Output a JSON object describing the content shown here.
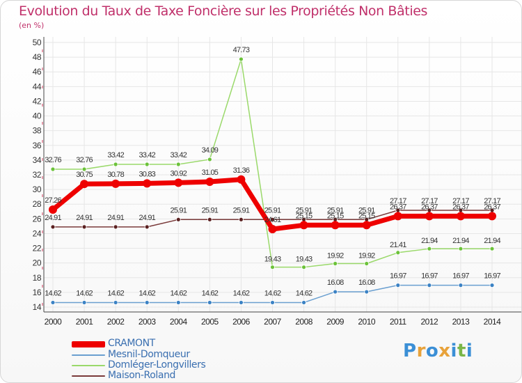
{
  "title": "Evolution du Taux de Taxe Foncière sur les Propriétés Non Bâties",
  "unit_label": "(en %)",
  "logo": {
    "text": [
      "P",
      "r",
      "o",
      "x",
      "i",
      "t",
      "i"
    ],
    "colors": [
      "#3b8fd6",
      "#e8a23a",
      "#3b8fd6",
      "#e8a23a",
      "#3b8fd6",
      "#7ab648",
      "#3b8fd6"
    ]
  },
  "chart_data": {
    "type": "line",
    "title": "Evolution du Taux de Taxe Foncière sur les Propriétés Non Bâties",
    "ylabel": "(en %)",
    "xlabel": "",
    "ylim": [
      14,
      50
    ],
    "yticks": [
      "14",
      "16",
      "18",
      "20",
      "22",
      "24",
      "26",
      "28",
      "30",
      "32",
      "34",
      "36",
      "38",
      "40",
      "42",
      "44",
      "46",
      "48",
      "50"
    ],
    "categories": [
      "2000",
      "2001",
      "2002",
      "2003",
      "2004",
      "2005",
      "2006",
      "2007",
      "2008",
      "2009",
      "2010",
      "2011",
      "2012",
      "2013",
      "2014"
    ],
    "grid": true,
    "legend_position": "bottom-left",
    "series": [
      {
        "name": "Mesnil-Domqueur",
        "color": "#6a9fd0",
        "marker": "#3b82c4",
        "values": [
          14.62,
          14.62,
          14.62,
          14.62,
          14.62,
          14.62,
          14.62,
          14.62,
          14.62,
          16.08,
          16.08,
          16.97,
          16.97,
          16.97,
          16.97
        ],
        "labels": [
          "14.62",
          "14.62",
          "14.62",
          "14.62",
          "14.62",
          "14.62",
          "14.62",
          "14.62",
          "14.62",
          "16.08",
          "16.08",
          "16.97",
          "16.97",
          "16.97",
          "16.97"
        ]
      },
      {
        "name": "Domléger-Longvillers",
        "color": "#9ad96a",
        "marker": "#6cc23a",
        "values": [
          32.76,
          32.76,
          33.42,
          33.42,
          33.42,
          34.09,
          47.73,
          19.43,
          19.43,
          19.92,
          19.92,
          21.41,
          21.94,
          21.94,
          21.94
        ],
        "labels": [
          "32.76",
          "32.76",
          "33.42",
          "33.42",
          "33.42",
          "34.09",
          "47.73",
          "19.43",
          "19.43",
          "19.92",
          "19.92",
          "21.41",
          "21.94",
          "21.94",
          "21.94"
        ]
      },
      {
        "name": "Maison-Roland",
        "color": "#7a3a3a",
        "marker": "#5a2020",
        "values": [
          24.91,
          24.91,
          24.91,
          24.91,
          25.91,
          25.91,
          25.91,
          25.91,
          25.91,
          25.91,
          25.91,
          27.17,
          27.17,
          27.17,
          27.17
        ],
        "labels": [
          "24.91",
          "24.91",
          "24.91",
          "24.91",
          "25.91",
          "25.91",
          "25.91",
          "25.91",
          "25.91",
          "25.91",
          "25.91",
          "27.17",
          "27.17",
          "27.17",
          "27.17"
        ]
      },
      {
        "name": "CRAMONT",
        "color": "#ee0000",
        "marker": "#ee0000",
        "values": [
          27.26,
          30.75,
          30.78,
          30.83,
          30.92,
          31.05,
          31.36,
          24.61,
          25.15,
          25.15,
          25.15,
          26.37,
          26.37,
          26.37,
          26.37
        ],
        "labels": [
          "27.26",
          "30.75",
          "30.78",
          "30.83",
          "30.92",
          "31.05",
          "31.36",
          "24.61",
          "25.15",
          "25.15",
          "25.15",
          "26.37",
          "26.37",
          "26.37",
          "26.37"
        ]
      }
    ],
    "legend_order": [
      "CRAMONT",
      "Mesnil-Domqueur",
      "Domléger-Longvillers",
      "Maison-Roland"
    ]
  }
}
